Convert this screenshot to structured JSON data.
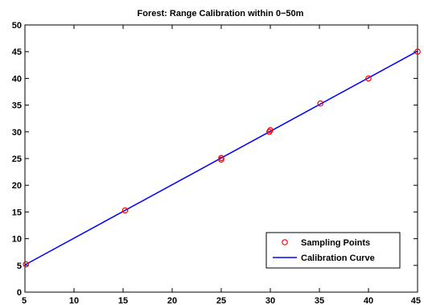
{
  "chart_data": {
    "type": "scatter",
    "title": "Forest: Range Calibration within 0−50m",
    "xlabel": "",
    "ylabel": "",
    "xlim": [
      5,
      45
    ],
    "ylim": [
      0,
      50
    ],
    "x_ticks": [
      5,
      10,
      15,
      20,
      25,
      30,
      35,
      40,
      45
    ],
    "y_ticks": [
      0,
      5,
      10,
      15,
      20,
      25,
      30,
      35,
      40,
      45,
      50
    ],
    "grid": false,
    "legend_position": "bottom-right",
    "series": [
      {
        "name": "Sampling Points",
        "kind": "markers",
        "marker": "circle",
        "color": "#ff0000",
        "points": [
          {
            "x": 5.1,
            "y": 5.2
          },
          {
            "x": 15.2,
            "y": 15.3
          },
          {
            "x": 25.0,
            "y": 24.8
          },
          {
            "x": 25.0,
            "y": 25.1
          },
          {
            "x": 29.9,
            "y": 30.0
          },
          {
            "x": 30.0,
            "y": 30.3
          },
          {
            "x": 35.1,
            "y": 35.3
          },
          {
            "x": 40.0,
            "y": 40.0
          },
          {
            "x": 45.0,
            "y": 45.0
          }
        ]
      },
      {
        "name": "Calibration Curve",
        "kind": "line",
        "color": "#0000ff",
        "points": [
          {
            "x": 5.0,
            "y": 5.1
          },
          {
            "x": 45.0,
            "y": 45.1
          }
        ]
      }
    ]
  }
}
